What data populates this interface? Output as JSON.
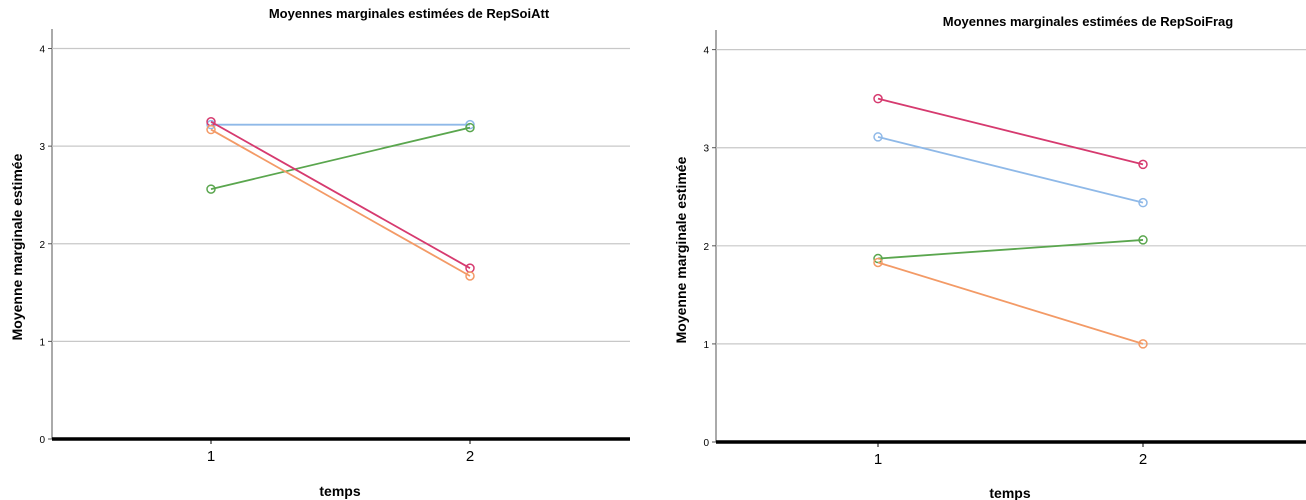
{
  "colors": {
    "blue": "#8fb9e8",
    "green": "#5aa64e",
    "pink": "#d63a6f",
    "orange": "#f39a66",
    "grid": "#c8c8c8",
    "axis": "#000000"
  },
  "chart_data": [
    {
      "type": "line",
      "title": "Moyennes marginales estimées de RepSoiAtt",
      "xlabel": "temps",
      "ylabel": "Moyenne marginale estimée",
      "categories": [
        "1",
        "2"
      ],
      "ylim": [
        0,
        4.2
      ],
      "yticks": [
        "0",
        "1",
        "2",
        "3",
        "4"
      ],
      "grid": true,
      "series": [
        {
          "color": "blue",
          "values": [
            3.22,
            3.22
          ]
        },
        {
          "color": "green",
          "values": [
            2.56,
            3.19
          ]
        },
        {
          "color": "pink",
          "values": [
            3.25,
            1.75
          ]
        },
        {
          "color": "orange",
          "values": [
            3.17,
            1.67
          ]
        }
      ]
    },
    {
      "type": "line",
      "title": "Moyennes marginales estimées de RepSoiFrag",
      "xlabel": "temps",
      "ylabel": "Moyenne marginale estimée",
      "categories": [
        "1",
        "2"
      ],
      "ylim": [
        0,
        4.2
      ],
      "yticks": [
        "0",
        "1",
        "2",
        "3",
        "4"
      ],
      "grid": true,
      "series": [
        {
          "color": "pink",
          "values": [
            3.5,
            2.83
          ]
        },
        {
          "color": "blue",
          "values": [
            3.11,
            2.44
          ]
        },
        {
          "color": "green",
          "values": [
            1.87,
            2.06
          ]
        },
        {
          "color": "orange",
          "values": [
            1.83,
            1.0
          ]
        }
      ]
    }
  ]
}
